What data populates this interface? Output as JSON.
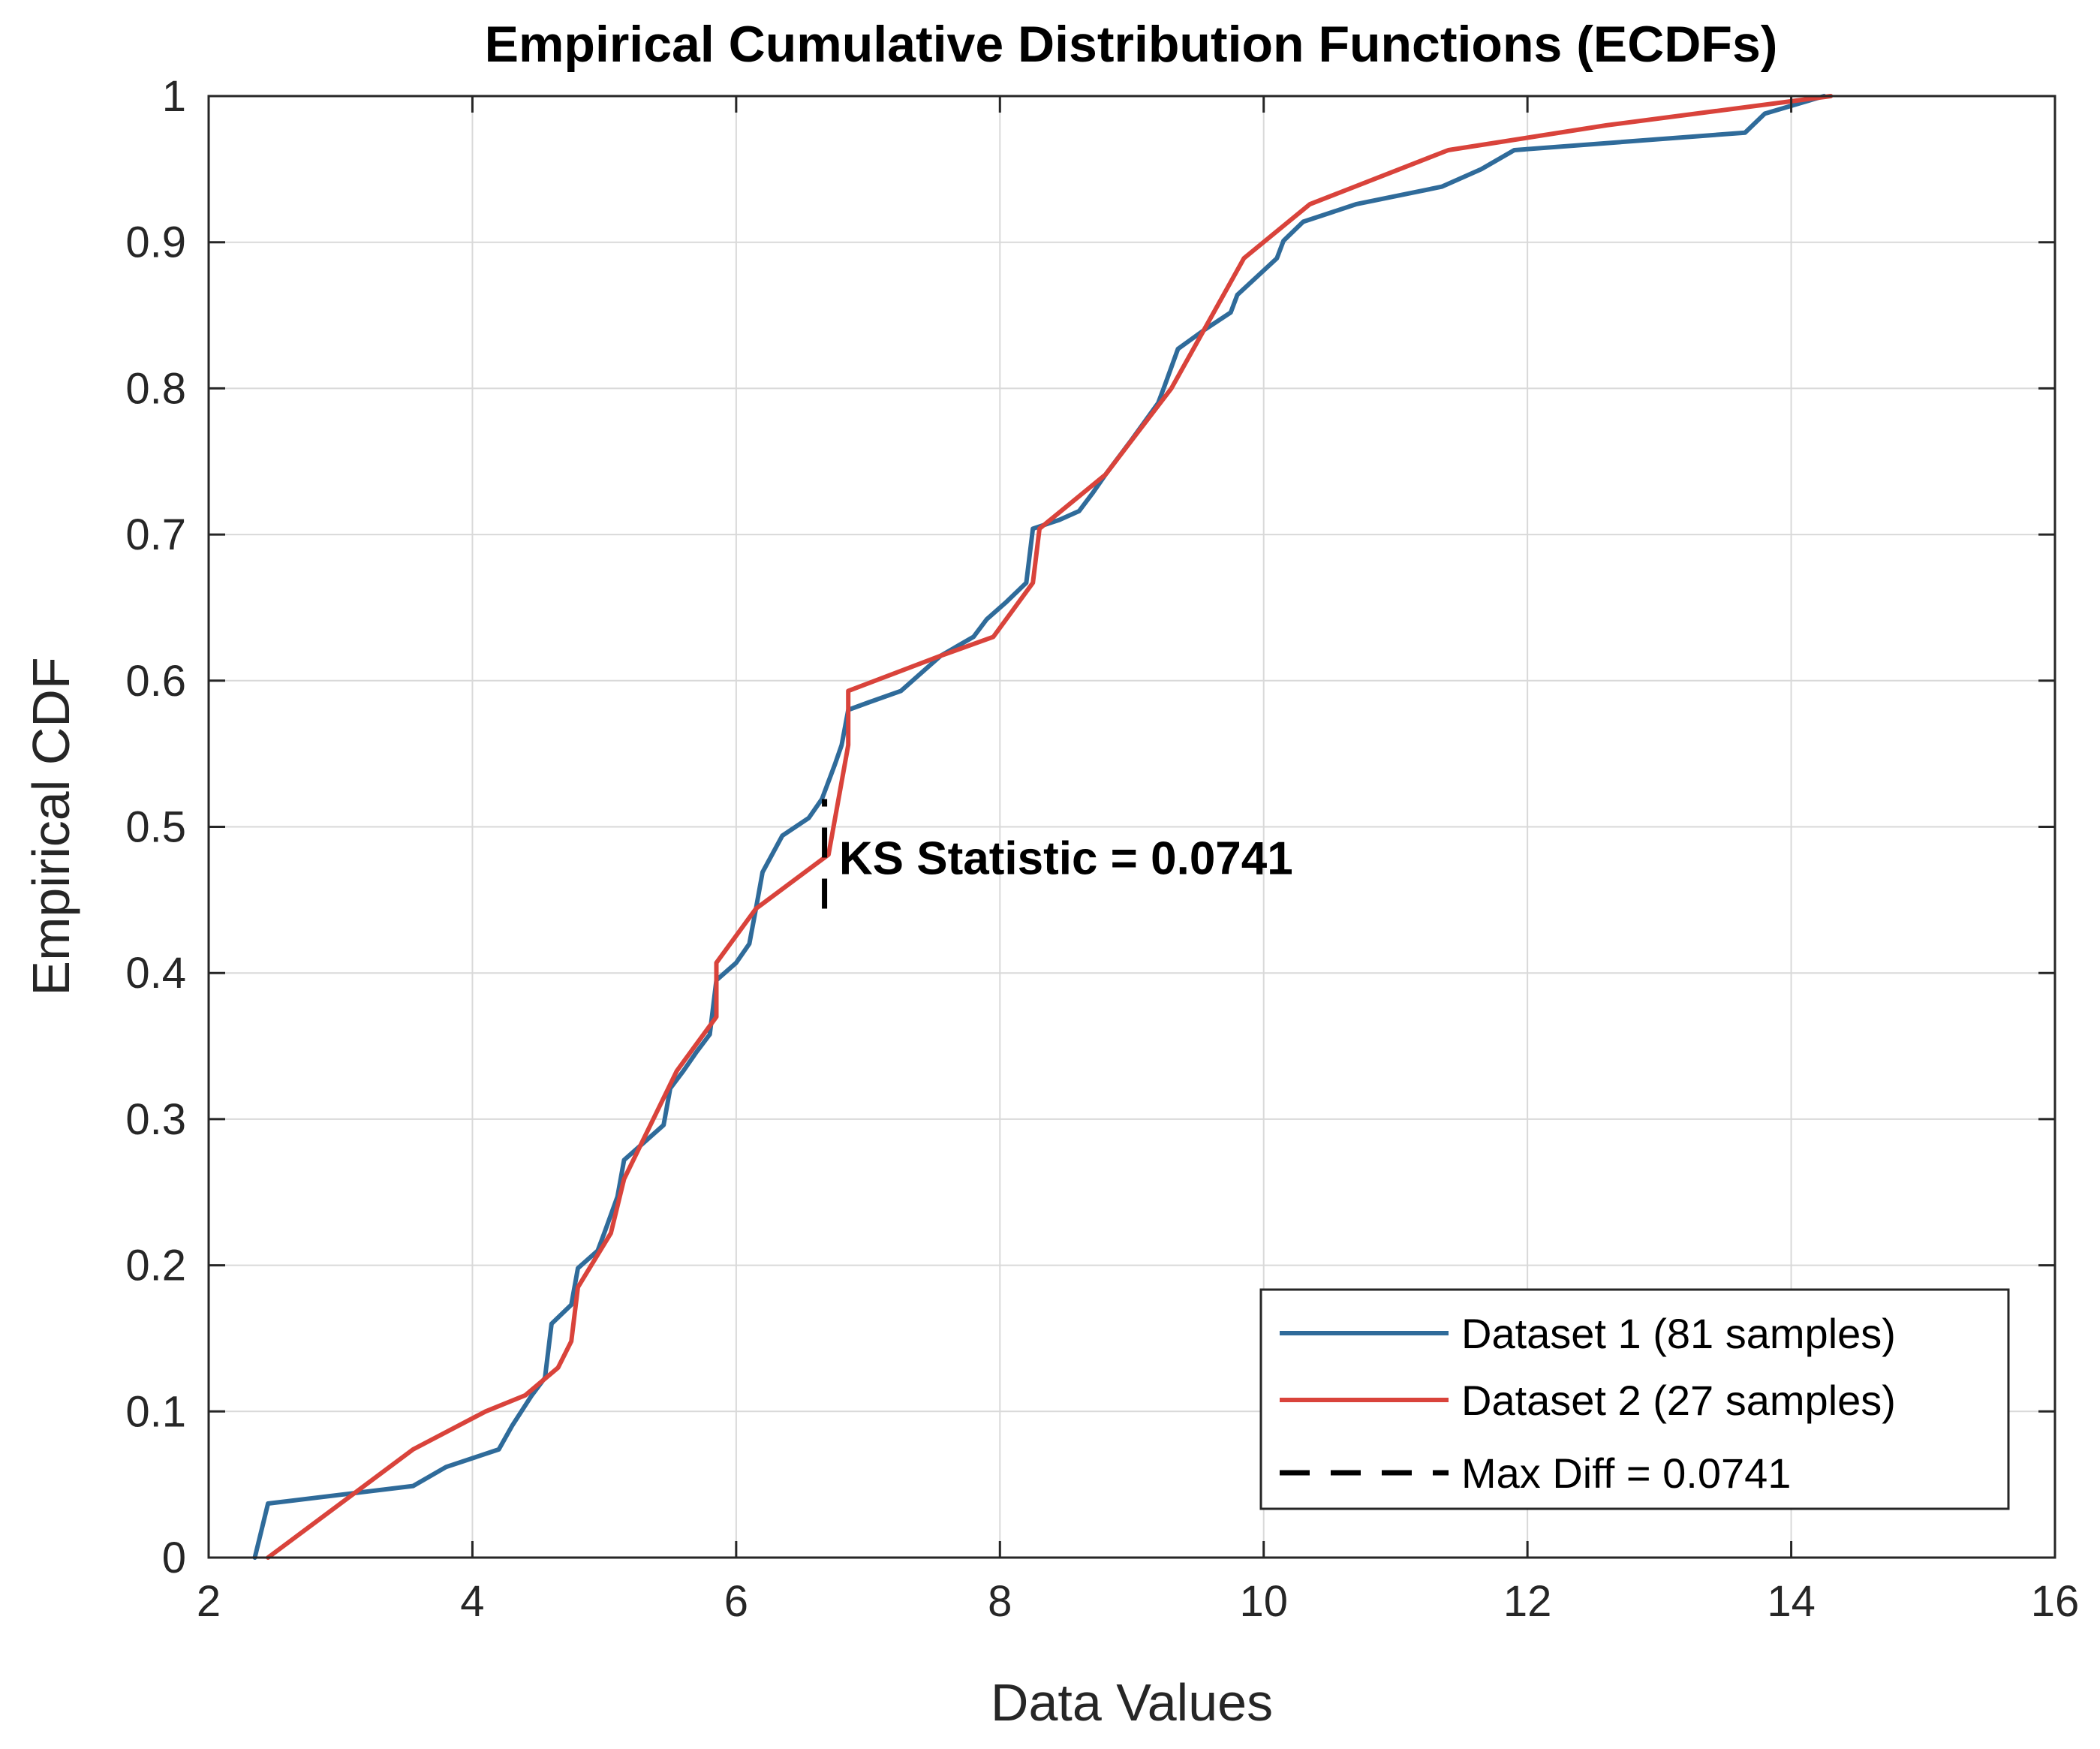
{
  "colors": {
    "dataset1": "#2f6b9a",
    "dataset2": "#d9433b",
    "maxdiff": "#000000"
  },
  "chart_data": {
    "type": "line",
    "title": "Empirical Cumulative Distribution Functions (ECDFs)",
    "xlabel": "Data Values",
    "ylabel": "Empirical CDF",
    "xlim": [
      2,
      16
    ],
    "ylim": [
      0,
      1
    ],
    "grid": true,
    "xticks": [
      2,
      4,
      6,
      8,
      10,
      12,
      14,
      16
    ],
    "xtick_labels": [
      "2",
      "4",
      "6",
      "8",
      "10",
      "12",
      "14",
      "16"
    ],
    "yticks": [
      0,
      0.1,
      0.2,
      0.3,
      0.4,
      0.5,
      0.6,
      0.7,
      0.8,
      0.9,
      1
    ],
    "ytick_labels": [
      "0",
      "0.1",
      "0.2",
      "0.3",
      "0.4",
      "0.5",
      "0.6",
      "0.7",
      "0.8",
      "0.9",
      "1"
    ],
    "legend_position": "bottom-right",
    "series": [
      {
        "name": "Dataset 1 (81 samples)",
        "points": [
          [
            2.35,
            0
          ],
          [
            2.45,
            0.037
          ],
          [
            3.0,
            0.043
          ],
          [
            3.55,
            0.049
          ],
          [
            3.8,
            0.062
          ],
          [
            4.2,
            0.074
          ],
          [
            4.3,
            0.09
          ],
          [
            4.45,
            0.111
          ],
          [
            4.55,
            0.123
          ],
          [
            4.6,
            0.16
          ],
          [
            4.75,
            0.173
          ],
          [
            4.8,
            0.198
          ],
          [
            4.95,
            0.21
          ],
          [
            5.0,
            0.222
          ],
          [
            5.1,
            0.247
          ],
          [
            5.15,
            0.272
          ],
          [
            5.3,
            0.284
          ],
          [
            5.45,
            0.296
          ],
          [
            5.5,
            0.321
          ],
          [
            5.6,
            0.333
          ],
          [
            5.7,
            0.346
          ],
          [
            5.8,
            0.358
          ],
          [
            5.85,
            0.395
          ],
          [
            6.0,
            0.407
          ],
          [
            6.1,
            0.42
          ],
          [
            6.15,
            0.444
          ],
          [
            6.2,
            0.469
          ],
          [
            6.35,
            0.494
          ],
          [
            6.55,
            0.506
          ],
          [
            6.65,
            0.519
          ],
          [
            6.7,
            0.531
          ],
          [
            6.75,
            0.543
          ],
          [
            6.8,
            0.556
          ],
          [
            6.85,
            0.58
          ],
          [
            7.0,
            0.585
          ],
          [
            7.25,
            0.593
          ],
          [
            7.55,
            0.617
          ],
          [
            7.8,
            0.63
          ],
          [
            7.9,
            0.642
          ],
          [
            8.05,
            0.654
          ],
          [
            8.2,
            0.667
          ],
          [
            8.25,
            0.704
          ],
          [
            8.45,
            0.71
          ],
          [
            8.6,
            0.716
          ],
          [
            8.7,
            0.728
          ],
          [
            8.8,
            0.741
          ],
          [
            9.0,
            0.765
          ],
          [
            9.2,
            0.79
          ],
          [
            9.25,
            0.802
          ],
          [
            9.35,
            0.827
          ],
          [
            9.55,
            0.84
          ],
          [
            9.75,
            0.852
          ],
          [
            9.8,
            0.864
          ],
          [
            10.1,
            0.889
          ],
          [
            10.15,
            0.901
          ],
          [
            10.3,
            0.914
          ],
          [
            10.7,
            0.926
          ],
          [
            11.35,
            0.938
          ],
          [
            11.65,
            0.95
          ],
          [
            11.9,
            0.963
          ],
          [
            13.65,
            0.975
          ],
          [
            13.8,
            0.988
          ],
          [
            14.25,
            1.0
          ]
        ]
      },
      {
        "name": "Dataset 2 (27 samples)",
        "points": [
          [
            2.45,
            0
          ],
          [
            3.0,
            0.037
          ],
          [
            3.55,
            0.074
          ],
          [
            4.1,
            0.1
          ],
          [
            4.4,
            0.111
          ],
          [
            4.65,
            0.13
          ],
          [
            4.75,
            0.148
          ],
          [
            4.8,
            0.185
          ],
          [
            5.05,
            0.222
          ],
          [
            5.15,
            0.259
          ],
          [
            5.55,
            0.333
          ],
          [
            5.85,
            0.37
          ],
          [
            5.85,
            0.407
          ],
          [
            6.15,
            0.444
          ],
          [
            6.7,
            0.481
          ],
          [
            6.85,
            0.556
          ],
          [
            6.85,
            0.593
          ],
          [
            7.55,
            0.617
          ],
          [
            7.95,
            0.63
          ],
          [
            8.25,
            0.667
          ],
          [
            8.3,
            0.704
          ],
          [
            8.8,
            0.741
          ],
          [
            9.3,
            0.8
          ],
          [
            9.85,
            0.889
          ],
          [
            10.35,
            0.926
          ],
          [
            11.4,
            0.963
          ],
          [
            12.6,
            0.98
          ],
          [
            14.3,
            1.0
          ]
        ]
      },
      {
        "name": "Max Diff = 0.0741",
        "segment": {
          "x": 6.67,
          "y_from": 0.444,
          "y_to": 0.519
        }
      }
    ],
    "annotations": [
      {
        "text": "KS Statistic = 0.0741",
        "x": 6.78,
        "y": 0.479
      }
    ]
  }
}
